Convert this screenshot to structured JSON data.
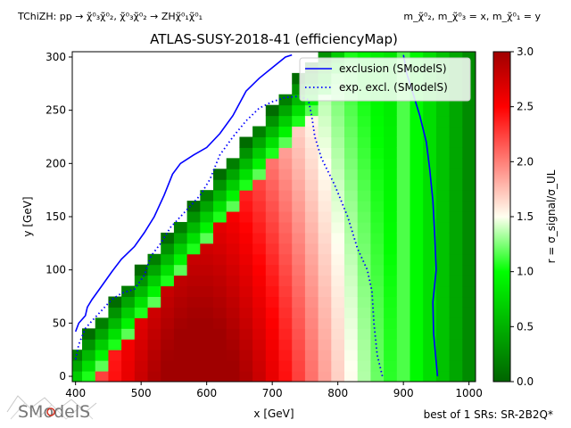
{
  "header": {
    "process": "TChiZH: pp → χ̃⁰₃χ̃⁰₂, χ̃⁰₃χ̃⁰₂ → ZHχ̃⁰₁χ̃⁰₁",
    "mass_relation": "m_χ̃⁰₂, m_χ̃⁰₃ = x, m_χ̃⁰₁ = y"
  },
  "footer": {
    "logo_text": "SModelS",
    "best_sr": "best of 1 SRs: SR-2B2Q*"
  },
  "chart_data": {
    "type": "heatmap",
    "title": "ATLAS-SUSY-2018-41 (efficiencyMap)",
    "xlabel": "x [GeV]",
    "ylabel": "y [GeV]",
    "xlim": [
      395,
      1010
    ],
    "ylim": [
      -5,
      305
    ],
    "x_ticks": [
      400,
      500,
      600,
      700,
      800,
      900,
      1000
    ],
    "y_ticks": [
      0,
      50,
      100,
      150,
      200,
      250,
      300
    ],
    "colorbar": {
      "label": "r = σ_signal/σ_UL",
      "range": [
        0.0,
        3.0
      ],
      "ticks": [
        0.0,
        0.5,
        1.0,
        1.5,
        2.0,
        2.5,
        3.0
      ],
      "colors": [
        "#006400",
        "#00ff00",
        "#fffff0",
        "#ff0000",
        "#a00000"
      ]
    },
    "grid": {
      "x_start": 400,
      "x_step": 20,
      "nx": 31,
      "y_start": 0,
      "y_step": 10,
      "ny": 31,
      "diagonal_cut": "y <= 0.75*(x - 380)"
    },
    "legend_position": "top-right",
    "series": [
      {
        "name": "exclusion (SModelS)",
        "style": "solid",
        "color": "#0000ff",
        "points": [
          [
            400,
            42
          ],
          [
            405,
            50
          ],
          [
            415,
            57
          ],
          [
            418,
            65
          ],
          [
            425,
            72
          ],
          [
            440,
            85
          ],
          [
            455,
            98
          ],
          [
            470,
            110
          ],
          [
            490,
            122
          ],
          [
            505,
            135
          ],
          [
            520,
            150
          ],
          [
            535,
            170
          ],
          [
            548,
            190
          ],
          [
            560,
            200
          ],
          [
            580,
            208
          ],
          [
            600,
            215
          ],
          [
            620,
            228
          ],
          [
            640,
            245
          ],
          [
            660,
            268
          ],
          [
            680,
            280
          ],
          [
            700,
            290
          ],
          [
            720,
            300
          ],
          [
            730,
            302
          ]
        ]
      },
      {
        "name": "exp. excl. (SModelS)",
        "style": "dotted",
        "color": "#0000ff",
        "points": [
          [
            400,
            16
          ],
          [
            405,
            30
          ],
          [
            415,
            45
          ],
          [
            425,
            52
          ],
          [
            440,
            62
          ],
          [
            455,
            72
          ],
          [
            470,
            78
          ],
          [
            490,
            82
          ],
          [
            505,
            95
          ],
          [
            515,
            113
          ],
          [
            530,
            125
          ],
          [
            545,
            140
          ],
          [
            560,
            150
          ],
          [
            575,
            160
          ],
          [
            590,
            170
          ],
          [
            605,
            185
          ],
          [
            620,
            208
          ],
          [
            640,
            225
          ],
          [
            660,
            240
          ],
          [
            680,
            252
          ],
          [
            700,
            258
          ],
          [
            720,
            262
          ],
          [
            740,
            263
          ],
          [
            755,
            260
          ],
          [
            760,
            245
          ],
          [
            765,
            225
          ],
          [
            775,
            205
          ],
          [
            795,
            180
          ],
          [
            815,
            150
          ],
          [
            830,
            120
          ],
          [
            845,
            100
          ],
          [
            852,
            80
          ],
          [
            855,
            50
          ],
          [
            860,
            20
          ],
          [
            868,
            0
          ]
        ]
      },
      {
        "name": "exclusion (SModelS) right edge",
        "style": "solid",
        "color": "#0000ff",
        "points": [
          [
            900,
            302
          ],
          [
            905,
            285
          ],
          [
            915,
            265
          ],
          [
            925,
            245
          ],
          [
            935,
            220
          ],
          [
            940,
            195
          ],
          [
            945,
            165
          ],
          [
            948,
            130
          ],
          [
            950,
            100
          ],
          [
            945,
            70
          ],
          [
            946,
            40
          ],
          [
            952,
            0
          ]
        ]
      }
    ]
  }
}
